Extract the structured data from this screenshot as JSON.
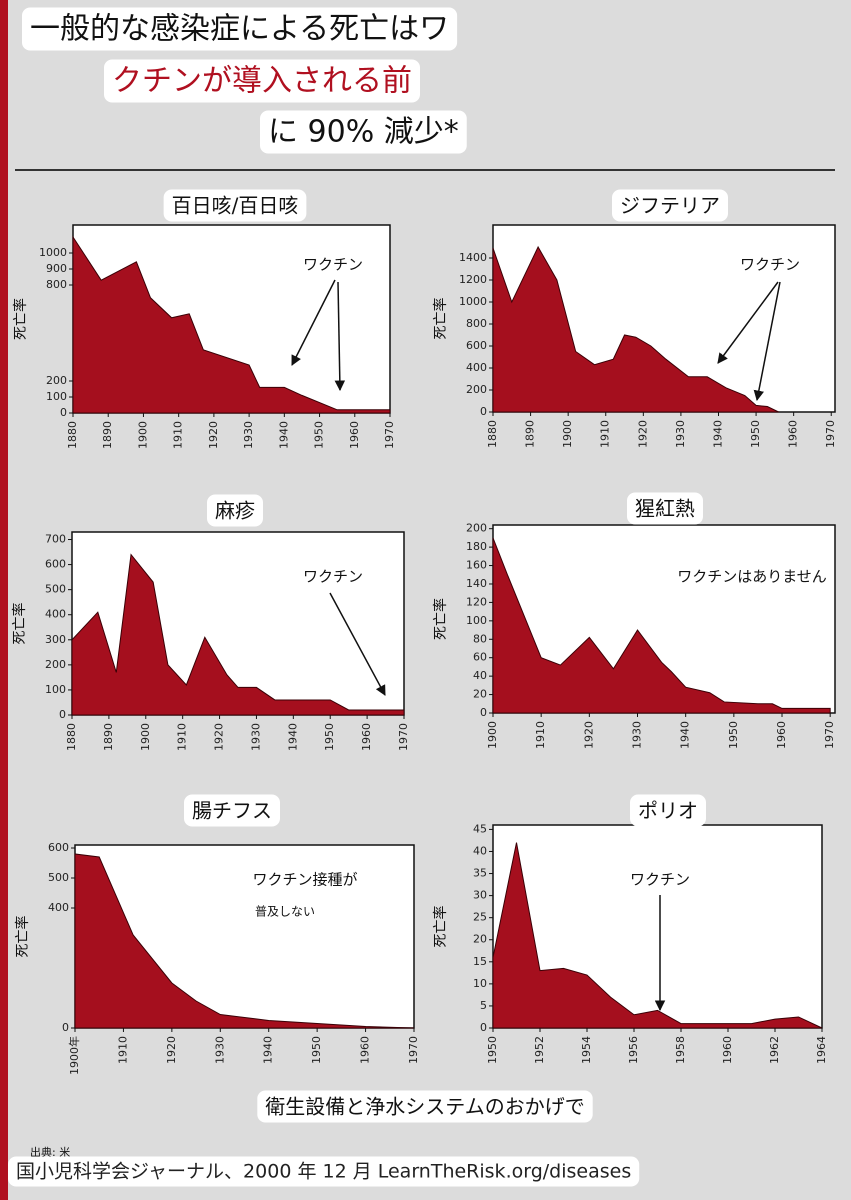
{
  "header": {
    "lines": [
      "一般的な感染症による死亡はワ",
      "クチンが導入される前",
      "に 90% 減少*"
    ]
  },
  "chart_data": [
    {
      "type": "area",
      "title": "百日咳/百日咳",
      "ylabel": "死亡率",
      "color": "#a50f1e",
      "x": [
        1880,
        1888,
        1898,
        1902,
        1908,
        1913,
        1917,
        1930,
        1933,
        1940,
        1945,
        1955,
        1970
      ],
      "values": [
        1100,
        830,
        945,
        720,
        595,
        620,
        395,
        300,
        160,
        160,
        110,
        20,
        20
      ],
      "xlim": [
        1880,
        1970
      ],
      "ylim": [
        0,
        1175
      ],
      "xticks": [
        1880,
        1890,
        1900,
        1910,
        1920,
        1930,
        1940,
        1950,
        1960,
        1970
      ],
      "yticks": [
        0,
        100,
        200,
        800,
        900,
        1000
      ],
      "annotations": [
        "ワクチン"
      ]
    },
    {
      "type": "area",
      "title": "ジフテリア",
      "ylabel": "死亡率",
      "color": "#a50f1e",
      "x": [
        1880,
        1885,
        1892,
        1897,
        1902,
        1907,
        1912,
        1915,
        1918,
        1922,
        1926,
        1932,
        1937,
        1942,
        1947,
        1950,
        1953,
        1956
      ],
      "values": [
        1490,
        1000,
        1500,
        1200,
        550,
        430,
        480,
        700,
        680,
        600,
        480,
        320,
        320,
        220,
        150,
        60,
        50,
        0
      ],
      "xlim": [
        1880,
        1971
      ],
      "ylim": [
        0,
        1700
      ],
      "xticks": [
        1880,
        1890,
        1900,
        1910,
        1920,
        1930,
        1940,
        1950,
        1960,
        1970
      ],
      "yticks": [
        0,
        200,
        400,
        600,
        800,
        1000,
        1200,
        1400
      ],
      "annotations": [
        "ワクチン"
      ]
    },
    {
      "type": "area",
      "title": "麻疹",
      "ylabel": "死亡率",
      "color": "#a50f1e",
      "x": [
        1880,
        1887,
        1892,
        1896,
        1902,
        1906,
        1911,
        1916,
        1922,
        1925,
        1930,
        1935,
        1950,
        1955,
        1970
      ],
      "values": [
        300,
        410,
        170,
        640,
        530,
        200,
        120,
        310,
        160,
        110,
        110,
        60,
        60,
        20,
        20
      ],
      "xlim": [
        1880,
        1970
      ],
      "ylim": [
        0,
        730
      ],
      "xticks": [
        1880,
        1890,
        1900,
        1910,
        1920,
        1930,
        1940,
        1950,
        1960,
        1970
      ],
      "yticks": [
        0,
        100,
        200,
        300,
        400,
        500,
        600,
        700
      ],
      "annotations": [
        "ワクチン"
      ]
    },
    {
      "type": "area",
      "title": "猩紅熱",
      "ylabel": "死亡率",
      "color": "#a50f1e",
      "x": [
        1900,
        1903,
        1910,
        1914,
        1920,
        1925,
        1930,
        1935,
        1937,
        1940,
        1945,
        1948,
        1955,
        1958,
        1960,
        1970
      ],
      "values": [
        190,
        150,
        60,
        52,
        82,
        48,
        90,
        55,
        45,
        28,
        22,
        12,
        10,
        10,
        5,
        5
      ],
      "xlim": [
        1900,
        1971
      ],
      "ylim": [
        0,
        204
      ],
      "xticks": [
        1900,
        1910,
        1920,
        1930,
        1940,
        1950,
        1960,
        1970
      ],
      "yticks": [
        0,
        20,
        40,
        60,
        80,
        100,
        120,
        140,
        160,
        180,
        200
      ],
      "annotations": [
        "ワクチンはありません"
      ]
    },
    {
      "type": "area",
      "title": "腸チフス",
      "ylabel": "死亡率",
      "color": "#a50f1e",
      "x": [
        1900,
        1905,
        1912,
        1920,
        1925,
        1930,
        1940,
        1950,
        1960,
        1970
      ],
      "values": [
        580,
        570,
        310,
        150,
        90,
        45,
        25,
        15,
        5,
        0
      ],
      "xlim": [
        1900,
        1970
      ],
      "ylim": [
        0,
        610
      ],
      "xticks": [
        {
          "value": 1900,
          "label": "1900年"
        },
        1910,
        1920,
        1930,
        1940,
        1950,
        1960,
        1970
      ],
      "yticks": [
        0,
        400,
        500,
        600
      ],
      "annotations": [
        "ワクチン接種が",
        "普及しない"
      ]
    },
    {
      "type": "area",
      "title": "ポリオ",
      "ylabel": "死亡率",
      "color": "#a50f1e",
      "x": [
        1950,
        1951,
        1952,
        1953,
        1954,
        1955,
        1956,
        1957,
        1958,
        1960,
        1961,
        1962,
        1963,
        1964
      ],
      "values": [
        16,
        42,
        13,
        13.5,
        12,
        7,
        3,
        4,
        1,
        1,
        1,
        2,
        2.5,
        0
      ],
      "xlim": [
        1950,
        1964
      ],
      "ylim": [
        0,
        46
      ],
      "xticks": [
        1950,
        1952,
        1954,
        1956,
        1958,
        1960,
        1962,
        1964
      ],
      "yticks": [
        0,
        5,
        10,
        15,
        20,
        25,
        30,
        35,
        40,
        45
      ],
      "annotations": [
        "ワクチン"
      ]
    }
  ],
  "footer": {
    "caption": "衛生設備と浄水システムのおかげで",
    "source_prefix": "出典: 米",
    "source": "国小児科学会ジャーナル、2000 年 12 月 LearnTheRisk.org/diseases"
  }
}
